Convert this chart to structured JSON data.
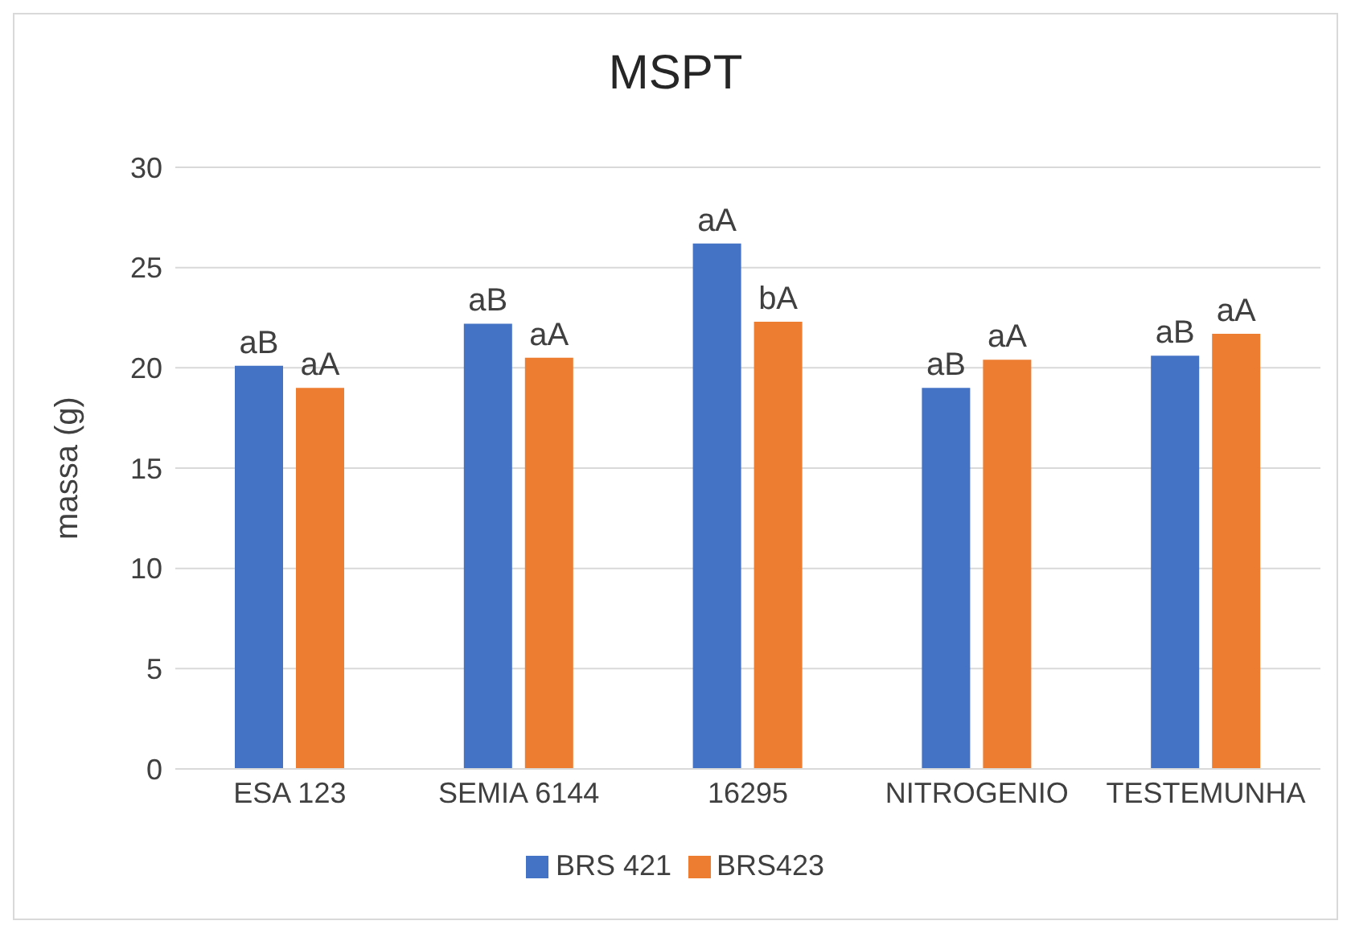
{
  "chart_data": {
    "type": "bar",
    "title": "MSPT",
    "ylabel": "massa (g)",
    "categories": [
      "ESA 123",
      "SEMIA 6144",
      "16295",
      "NITROGENIO",
      "TESTEMUNHA"
    ],
    "series": [
      {
        "name": "BRS 421",
        "color": "#4472c4",
        "values": [
          20.1,
          22.2,
          26.2,
          19.0,
          20.6
        ],
        "value_labels": [
          "aB",
          "aB",
          "aA",
          "aB",
          "aB"
        ]
      },
      {
        "name": "BRS423",
        "color": "#ed7d31",
        "values": [
          19.0,
          20.5,
          22.3,
          20.4,
          21.7
        ],
        "value_labels": [
          "aA",
          "aA",
          "bA",
          "aA",
          "aA"
        ]
      }
    ],
    "ylim": [
      0,
      30
    ],
    "yticks": [
      0,
      5,
      10,
      15,
      20,
      25,
      30
    ],
    "grid": "y",
    "legend": "bottom"
  }
}
